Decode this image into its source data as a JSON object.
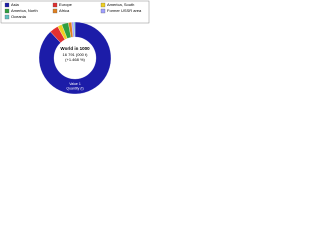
{
  "chart_data": {
    "type": "donut",
    "categories": [
      "Asia",
      "Europe",
      "America, South",
      "America, North",
      "Africa",
      "Former USSR area",
      "Oceania"
    ],
    "values": [
      88,
      4,
      2,
      3,
      1.5,
      1,
      0.5
    ],
    "colors": [
      "#1c1ca8",
      "#e03030",
      "#f0d020",
      "#30a040",
      "#e08020",
      "#a0a0ff",
      "#60c0c0"
    ],
    "annotations": [
      "World in 1000",
      "16 791 (000 t)",
      "(+1.468 %)",
      "Value 1",
      "Quantity (t)"
    ]
  }
}
